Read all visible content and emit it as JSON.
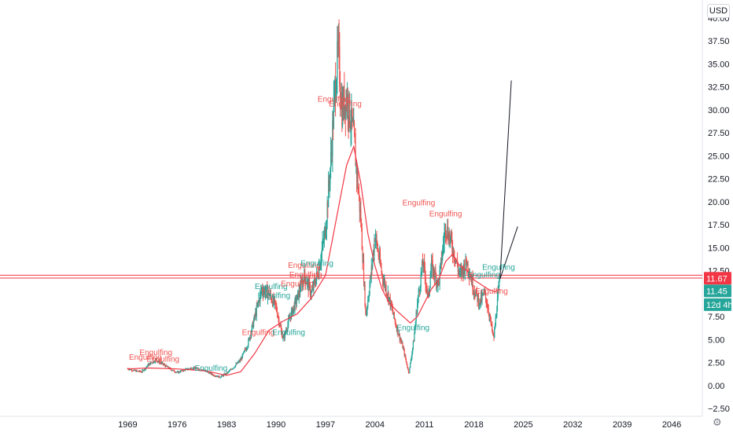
{
  "currency": "USD",
  "settings_icon": "gear-icon",
  "chart_data": {
    "type": "candlestick",
    "ylim": [
      -2.5,
      40
    ],
    "xlim": [
      1962.6,
      2050
    ],
    "y_ticks": [
      "40.00",
      "37.50",
      "35.00",
      "32.50",
      "30.00",
      "27.50",
      "25.00",
      "22.50",
      "20.00",
      "17.50",
      "15.00",
      "12.50",
      "10.00",
      "7.50",
      "5.00",
      "2.50",
      "0.00",
      "−2.50"
    ],
    "x_ticks": [
      {
        "label": "1969",
        "value": 1969
      },
      {
        "label": "1976",
        "value": 1976
      },
      {
        "label": "1983",
        "value": 1983
      },
      {
        "label": "1990",
        "value": 1990
      },
      {
        "label": "1997",
        "value": 1997
      },
      {
        "label": "2004",
        "value": 2004
      },
      {
        "label": "2011",
        "value": 2011
      },
      {
        "label": "2018",
        "value": 2018
      },
      {
        "label": "2025",
        "value": 2025
      },
      {
        "label": "2032",
        "value": 2032
      },
      {
        "label": "2039",
        "value": 2039
      },
      {
        "label": "2046",
        "value": 2046
      }
    ],
    "price_path": [
      [
        1969,
        1.85
      ],
      [
        1970,
        1.6
      ],
      [
        1971,
        1.5
      ],
      [
        1972,
        2.3
      ],
      [
        1973,
        2.8
      ],
      [
        1974,
        2.3
      ],
      [
        1975,
        1.8
      ],
      [
        1976,
        1.4
      ],
      [
        1977,
        1.7
      ],
      [
        1978,
        1.9
      ],
      [
        1979,
        1.8
      ],
      [
        1980,
        1.6
      ],
      [
        1981,
        1.2
      ],
      [
        1982,
        0.9
      ],
      [
        1983,
        1.3
      ],
      [
        1984,
        2.0
      ],
      [
        1985,
        2.8
      ],
      [
        1986,
        4.5
      ],
      [
        1987,
        7.5
      ],
      [
        1988,
        10.5
      ],
      [
        1989,
        10.0
      ],
      [
        1990,
        8.5
      ],
      [
        1991,
        5.0
      ],
      [
        1992,
        7.5
      ],
      [
        1993,
        9.5
      ],
      [
        1994,
        12.0
      ],
      [
        1995,
        10.0
      ],
      [
        1996,
        12.5
      ],
      [
        1997,
        17.0
      ],
      [
        1997.8,
        25.0
      ],
      [
        1998.3,
        32.0
      ],
      [
        1998.8,
        36.5
      ],
      [
        1999.3,
        30.0
      ],
      [
        2000,
        31.5
      ],
      [
        2001,
        27.0
      ],
      [
        2002,
        18.0
      ],
      [
        2002.7,
        7.5
      ],
      [
        2003.5,
        12.5
      ],
      [
        2004,
        16.5
      ],
      [
        2005,
        12.0
      ],
      [
        2006,
        9.5
      ],
      [
        2007,
        6.5
      ],
      [
        2008,
        4.0
      ],
      [
        2008.8,
        1.3
      ],
      [
        2009.5,
        5.0
      ],
      [
        2010,
        9.0
      ],
      [
        2010.8,
        13.5
      ],
      [
        2011.5,
        9.5
      ],
      [
        2012,
        13.0
      ],
      [
        2013,
        11.0
      ],
      [
        2014,
        17.5
      ],
      [
        2015,
        15.0
      ],
      [
        2016,
        12.0
      ],
      [
        2017,
        13.5
      ],
      [
        2018,
        10.5
      ],
      [
        2018.8,
        9.0
      ],
      [
        2019.5,
        10.0
      ],
      [
        2020,
        8.5
      ],
      [
        2020.8,
        5.0
      ],
      [
        2021.3,
        9.0
      ],
      [
        2021.7,
        11.6
      ]
    ],
    "ma_path": [
      [
        1969,
        1.8
      ],
      [
        1972,
        1.9
      ],
      [
        1976,
        1.8
      ],
      [
        1980,
        1.6
      ],
      [
        1983,
        1.1
      ],
      [
        1985,
        1.5
      ],
      [
        1987,
        3.5
      ],
      [
        1989,
        6.0
      ],
      [
        1991,
        7.0
      ],
      [
        1993,
        7.8
      ],
      [
        1995,
        9.5
      ],
      [
        1997,
        12.0
      ],
      [
        1998,
        16.0
      ],
      [
        1999,
        20.0
      ],
      [
        2000,
        24.0
      ],
      [
        2001,
        26.0
      ],
      [
        2002,
        22.0
      ],
      [
        2003,
        16.5
      ],
      [
        2004,
        13.0
      ],
      [
        2005,
        10.5
      ],
      [
        2006,
        9.0
      ],
      [
        2007,
        8.2
      ],
      [
        2008,
        7.5
      ],
      [
        2009,
        6.8
      ],
      [
        2010,
        7.5
      ],
      [
        2011,
        9.0
      ],
      [
        2012,
        10.5
      ],
      [
        2013,
        11.5
      ],
      [
        2014,
        13.5
      ],
      [
        2015,
        14.3
      ],
      [
        2016,
        13.0
      ],
      [
        2017,
        12.5
      ],
      [
        2018,
        11.5
      ],
      [
        2019,
        11.0
      ],
      [
        2020,
        10.5
      ],
      [
        2021,
        10.2
      ],
      [
        2021.7,
        10.5
      ]
    ],
    "projections": [
      {
        "from": [
          2021.7,
          11.6
        ],
        "to": [
          2023.3,
          33.2
        ]
      },
      {
        "from": [
          2021.7,
          11.6
        ],
        "to": [
          2024.2,
          17.3
        ]
      }
    ],
    "horizontal_lines": [
      12.0,
      11.7
    ],
    "annotations": [
      {
        "text": "Engulfing",
        "x": 1973.0,
        "y": 3.3,
        "color": "#ef5350"
      },
      {
        "text": "Engulfing",
        "x": 1971.5,
        "y": 2.8,
        "color": "#ef5350"
      },
      {
        "text": "Engulfing",
        "x": 1974.0,
        "y": 2.6,
        "color": "#ef5350"
      },
      {
        "text": "Engulfing",
        "x": 1980.8,
        "y": 1.6,
        "color": "#26a69a"
      },
      {
        "text": "Engulfing",
        "x": 1987.5,
        "y": 5.5,
        "color": "#ef5350"
      },
      {
        "text": "Engulfing",
        "x": 1989.3,
        "y": 10.5,
        "color": "#26a69a"
      },
      {
        "text": "Engulfing",
        "x": 1989.7,
        "y": 9.5,
        "color": "#26a69a"
      },
      {
        "text": "Engulfing",
        "x": 1991.8,
        "y": 5.5,
        "color": "#26a69a"
      },
      {
        "text": "Engulfing",
        "x": 1993.0,
        "y": 10.8,
        "color": "#ef5350"
      },
      {
        "text": "Engulfing",
        "x": 1994.0,
        "y": 12.8,
        "color": "#ef5350"
      },
      {
        "text": "Engulfing",
        "x": 1994.2,
        "y": 11.8,
        "color": "#ef5350"
      },
      {
        "text": "Engulfing",
        "x": 1995.8,
        "y": 13.0,
        "color": "#26a69a"
      },
      {
        "text": "Engulfing",
        "x": 1998.2,
        "y": 30.9,
        "color": "#ef5350"
      },
      {
        "text": "Engulfing",
        "x": 1999.8,
        "y": 30.4,
        "color": "#ef5350"
      },
      {
        "text": "Engulfing",
        "x": 2009.4,
        "y": 6.0,
        "color": "#26a69a"
      },
      {
        "text": "Engulfing",
        "x": 2010.2,
        "y": 19.6,
        "color": "#ef5350"
      },
      {
        "text": "Engulfing",
        "x": 2014.0,
        "y": 18.4,
        "color": "#ef5350"
      },
      {
        "text": "Engulfing",
        "x": 2019.4,
        "y": 11.8,
        "color": "#26a69a"
      },
      {
        "text": "Engulfing",
        "x": 2020.5,
        "y": 10.0,
        "color": "#ef5350"
      },
      {
        "text": "Engulfing",
        "x": 2021.5,
        "y": 12.6,
        "color": "#26a69a"
      }
    ],
    "price_tags": [
      {
        "text": "11.67",
        "y": 11.67,
        "bg": "#f23645"
      },
      {
        "text": "11.45",
        "y": 10.3,
        "bg": "#26a69a"
      },
      {
        "text": "12d 4h",
        "y": 8.8,
        "bg": "#26a69a"
      }
    ]
  },
  "colors": {
    "up": "#26a69a",
    "down": "#ef5350",
    "ma": "#f23645",
    "projection": "#131722",
    "hline": "#f23645"
  }
}
